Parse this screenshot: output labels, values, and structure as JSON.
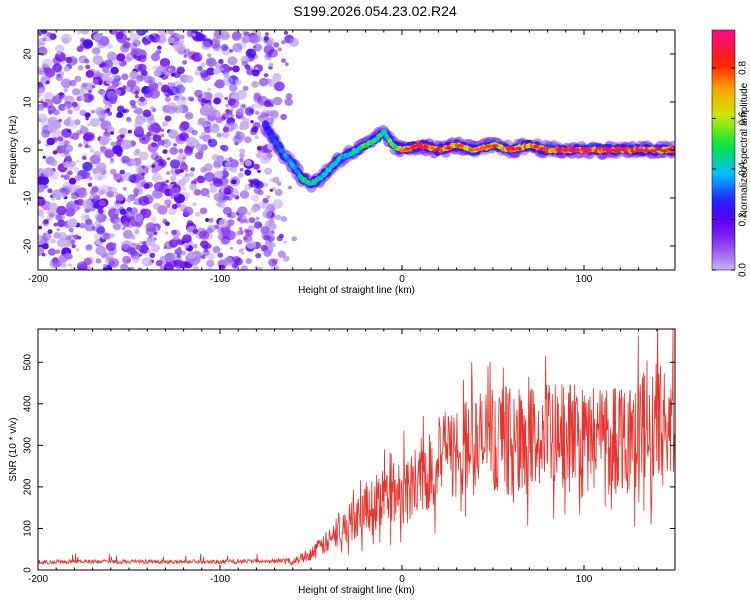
{
  "title": "S199.2026.054.23.02.R24",
  "colors": {
    "snr_line": "#e8322b",
    "axis": "#000000",
    "background": "#ffffff"
  },
  "chart_data": [
    {
      "type": "heatmap",
      "name": "spectrogram",
      "xlabel": "Height of straight line (km)",
      "ylabel": "Frequency (Hz)",
      "xlim": [
        -200,
        150
      ],
      "ylim": [
        -25,
        25
      ],
      "xticks": [
        -200,
        -100,
        0,
        100
      ],
      "xtick_labels": [
        "-200",
        "-100",
        "0",
        "100"
      ],
      "yticks": [
        -20,
        -10,
        0,
        10,
        20
      ],
      "ytick_labels": [
        "-20",
        "-10",
        "0",
        "10",
        "20"
      ],
      "noise_region_x": [
        -200,
        -70
      ],
      "signal_track": {
        "x": [
          -75,
          -70,
          -65,
          -60,
          -55,
          -50,
          -45,
          -40,
          -35,
          -30,
          -25,
          -20,
          -15,
          -10,
          -5,
          0,
          10,
          20,
          30,
          40,
          50,
          60,
          70,
          80,
          90,
          100,
          110,
          120,
          130,
          140,
          150
        ],
        "freq": [
          5,
          2,
          -1,
          -3,
          -6,
          -7,
          -6,
          -4,
          -2,
          -1,
          0,
          1,
          2,
          4,
          1,
          0,
          1,
          0,
          1,
          0,
          1,
          0,
          1,
          0,
          0,
          0,
          0,
          0,
          0,
          0,
          0
        ],
        "amplitude": [
          0.3,
          0.35,
          0.4,
          0.45,
          0.5,
          0.55,
          0.5,
          0.5,
          0.45,
          0.45,
          0.5,
          0.55,
          0.55,
          0.5,
          0.6,
          0.75,
          0.9,
          0.85,
          0.8,
          0.75,
          0.8,
          0.85,
          0.8,
          0.85,
          0.9,
          0.95,
          0.9,
          0.85,
          0.9,
          0.85,
          0.8
        ]
      },
      "colorbar": {
        "label": "Normalized spectral amplitude",
        "range": [
          0,
          0.95
        ],
        "ticks": [
          0.0,
          0.2,
          0.4,
          0.6,
          0.8
        ],
        "tick_labels": [
          "0.0",
          "0.2",
          "0.4",
          "0.6",
          "0.8"
        ]
      }
    },
    {
      "type": "line",
      "name": "snr",
      "xlabel": "Height of straight line (km)",
      "ylabel": "SNR (10 * v/v)",
      "xlim": [
        -200,
        150
      ],
      "ylim": [
        0,
        580
      ],
      "xticks": [
        -200,
        -100,
        0,
        100
      ],
      "xtick_labels": [
        "-200",
        "-100",
        "0",
        "100"
      ],
      "yticks": [
        0,
        100,
        200,
        300,
        400,
        500
      ],
      "ytick_labels": [
        "0",
        "100",
        "200",
        "300",
        "400",
        "500"
      ],
      "trend": {
        "x": [
          -200,
          -100,
          -60,
          -50,
          -40,
          -30,
          -20,
          -10,
          0,
          10,
          20,
          30,
          40,
          50,
          60,
          80,
          100,
          120,
          140,
          150
        ],
        "y": [
          18,
          18,
          20,
          40,
          70,
          110,
          150,
          180,
          190,
          225,
          260,
          285,
          300,
          320,
          310,
          315,
          320,
          330,
          350,
          345
        ]
      }
    }
  ]
}
